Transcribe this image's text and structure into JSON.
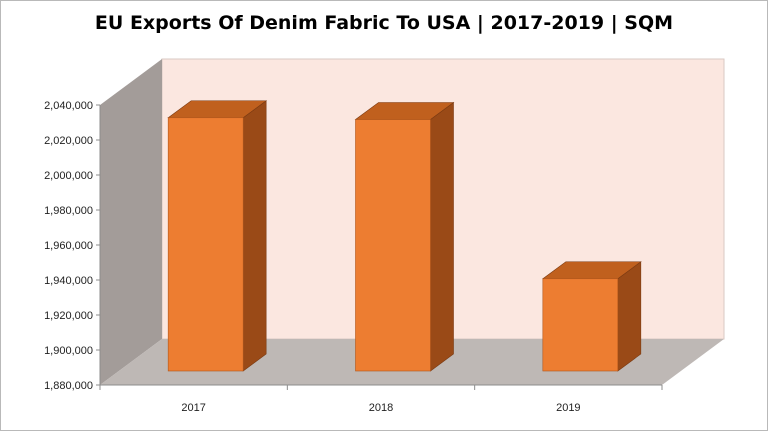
{
  "chart_data": {
    "type": "bar",
    "title": "EU Exports Of Denim Fabric To USA | 2017-2019 | SQM",
    "categories": [
      "2017",
      "2018",
      "2019"
    ],
    "values": [
      2035000,
      2034000,
      1943000
    ],
    "ylim": [
      1880000,
      2040000
    ],
    "yticks": [
      "1,880,000",
      "1,900,000",
      "1,920,000",
      "1,940,000",
      "1,960,000",
      "1,980,000",
      "2,000,000",
      "2,020,000",
      "2,040,000"
    ],
    "xlabel": "",
    "ylabel": "",
    "grid": false,
    "legend": "none",
    "style": "3d-column",
    "colors": {
      "bar_front": "#ED7D31",
      "bar_top": "#C0601E",
      "bar_side": "#9A4A17",
      "back_wall": "#FBE7E0",
      "side_wall": "#A39C99",
      "floor": "#BEB8B5"
    }
  }
}
